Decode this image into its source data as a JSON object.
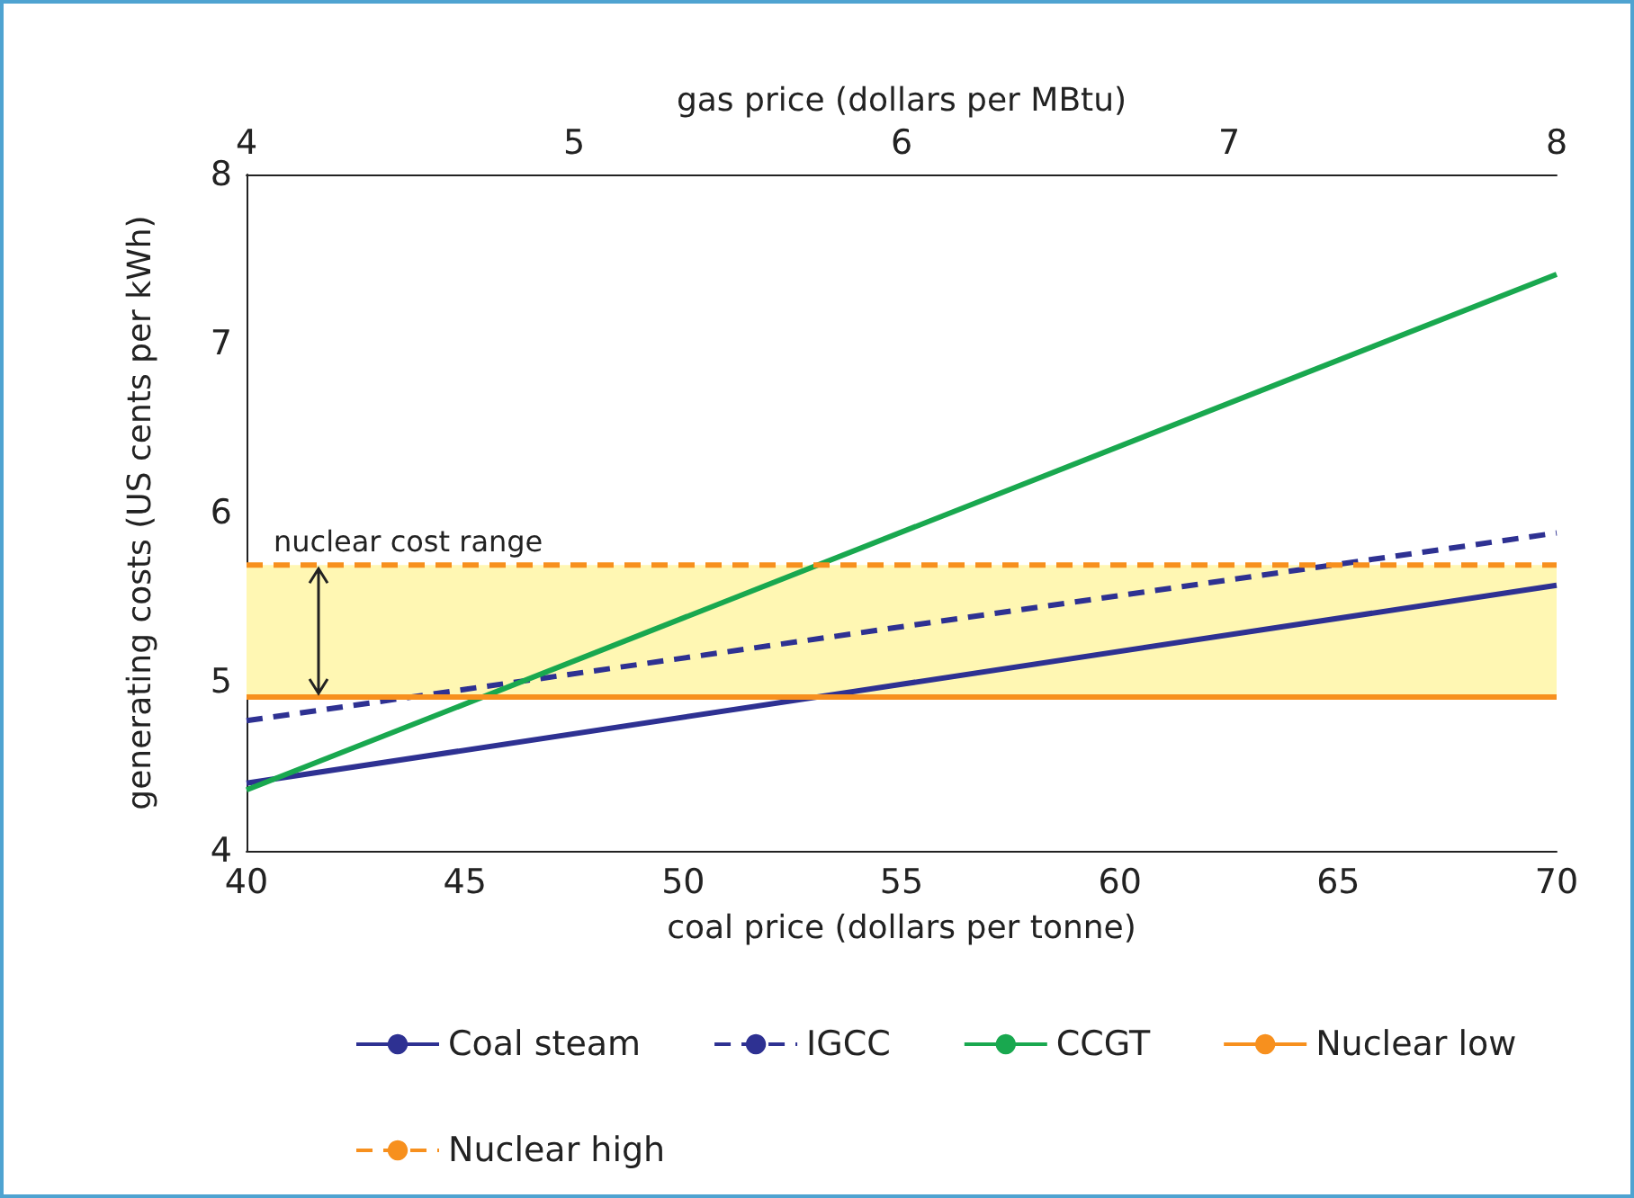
{
  "chart_data": {
    "type": "line",
    "xlabel": "coal price (dollars per tonne)",
    "x2label": "gas price (dollars per MBtu)",
    "ylabel": "generating costs (US cents per kWh)",
    "x": [
      40,
      70
    ],
    "series": [
      {
        "name": "Coal steam",
        "color": "#2e3192",
        "values": [
          4.4,
          5.57
        ]
      },
      {
        "name": "IGCC",
        "color": "#2e3192",
        "values": [
          4.77,
          5.88
        ],
        "line_style": "dashed"
      },
      {
        "name": "CCGT",
        "color": "#19a84f",
        "values": [
          4.36,
          7.41
        ]
      },
      {
        "name": "Nuclear low",
        "color": "#f7901e",
        "values": [
          4.91,
          4.91
        ]
      },
      {
        "name": "Nuclear high",
        "color": "#f7901e",
        "values": [
          5.69,
          5.69
        ],
        "line_style": "dashed"
      }
    ],
    "bands": [
      {
        "axis": "y",
        "from": 4.91,
        "to": 5.69,
        "label": "nuclear cost range",
        "color": "#fff7b3"
      }
    ],
    "xlim": [
      40,
      70
    ],
    "xticks": [
      40,
      45,
      50,
      55,
      60,
      65,
      70
    ],
    "x2lim": [
      4,
      8
    ],
    "x2ticks": [
      4,
      5,
      6,
      7,
      8
    ],
    "ylim": [
      4,
      8
    ],
    "yticks": [
      4,
      5,
      6,
      7,
      8
    ],
    "grid": false,
    "legend": "bottom",
    "marker": "none",
    "line_style": "solid"
  }
}
